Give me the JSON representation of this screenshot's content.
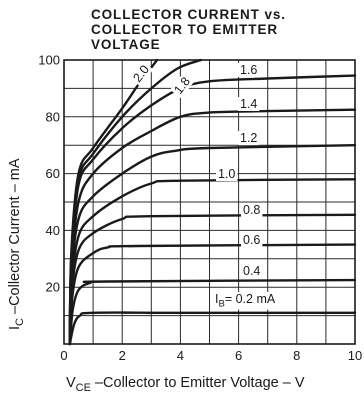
{
  "chart_data": {
    "type": "line",
    "title_lines": [
      "COLLECTOR CURRENT vs.",
      "COLLECTOR TO EMITTER",
      "VOLTAGE"
    ],
    "xlabel": {
      "prefix": "V",
      "sub": "CE",
      "text": " –Collector to Emitter Voltage – V"
    },
    "ylabel": {
      "prefix": "I",
      "sub": "C",
      "text": " –Collector Current – mA"
    },
    "xlim": [
      0,
      10
    ],
    "ylim": [
      0,
      100
    ],
    "x_ticks": [
      0,
      2,
      4,
      6,
      8,
      10
    ],
    "y_ticks": [
      0,
      20,
      40,
      60,
      80,
      100
    ],
    "x_tick_labels": [
      "0",
      "2",
      "4",
      "6",
      "8",
      "10"
    ],
    "y_tick_labels": [
      "",
      "20",
      "40",
      "60",
      "80",
      "100"
    ],
    "grid": true,
    "series": [
      {
        "name": "IB=0.2 mA",
        "label": "I",
        "label_sub": "B",
        "label_rest": "= 0.2  mA",
        "points": [
          [
            0.2,
            0
          ],
          [
            0.35,
            7
          ],
          [
            0.55,
            10
          ],
          [
            1,
            11
          ],
          [
            4,
            11
          ],
          [
            10,
            11
          ]
        ]
      },
      {
        "name": "0.4",
        "label": "0.4",
        "points": [
          [
            0.2,
            0
          ],
          [
            0.3,
            12
          ],
          [
            0.5,
            19
          ],
          [
            0.9,
            21.5
          ],
          [
            1.5,
            22
          ],
          [
            10,
            22.5
          ]
        ]
      },
      {
        "name": "0.6",
        "label": "0.6",
        "points": [
          [
            0.2,
            0
          ],
          [
            0.28,
            16
          ],
          [
            0.5,
            27
          ],
          [
            1,
            32
          ],
          [
            1.5,
            34
          ],
          [
            2.5,
            34.5
          ],
          [
            10,
            35
          ]
        ]
      },
      {
        "name": "0.8",
        "label": "0.8",
        "points": [
          [
            0.2,
            0
          ],
          [
            0.27,
            19
          ],
          [
            0.5,
            33
          ],
          [
            1,
            39
          ],
          [
            2,
            44
          ],
          [
            3,
            45
          ],
          [
            10,
            45.5
          ]
        ]
      },
      {
        "name": "1.0",
        "label": "1.0",
        "points": [
          [
            0.2,
            0
          ],
          [
            0.26,
            21
          ],
          [
            0.5,
            38
          ],
          [
            1,
            45
          ],
          [
            2,
            52
          ],
          [
            3,
            56.5
          ],
          [
            4,
            57.5
          ],
          [
            10,
            58
          ]
        ]
      },
      {
        "name": "1.2",
        "label": "1.2",
        "points": [
          [
            0.2,
            0
          ],
          [
            0.25,
            24
          ],
          [
            0.5,
            44
          ],
          [
            1,
            52
          ],
          [
            2,
            60
          ],
          [
            3,
            66
          ],
          [
            3.8,
            68
          ],
          [
            5,
            69
          ],
          [
            10,
            70
          ]
        ]
      },
      {
        "name": "1.4",
        "label": "1.4",
        "points": [
          [
            0.2,
            0
          ],
          [
            0.25,
            26
          ],
          [
            0.5,
            50
          ],
          [
            1,
            60
          ],
          [
            2,
            69
          ],
          [
            3,
            75
          ],
          [
            4,
            80
          ],
          [
            5,
            81.5
          ],
          [
            7,
            82
          ],
          [
            10,
            82.5
          ]
        ]
      },
      {
        "name": "1.6",
        "label": "1.6",
        "points": [
          [
            0.2,
            0
          ],
          [
            0.25,
            28
          ],
          [
            0.5,
            56
          ],
          [
            1,
            65
          ],
          [
            2,
            76
          ],
          [
            3,
            84
          ],
          [
            4,
            90
          ],
          [
            5,
            92.5
          ],
          [
            7,
            93.5
          ],
          [
            10,
            94.5
          ]
        ]
      },
      {
        "name": "1.8",
        "label": "1.8",
        "points": [
          [
            0.2,
            0
          ],
          [
            0.25,
            30
          ],
          [
            0.5,
            58
          ],
          [
            1,
            67
          ],
          [
            2,
            80
          ],
          [
            3,
            90
          ],
          [
            3.9,
            97
          ],
          [
            4.7,
            100
          ]
        ]
      },
      {
        "name": "2.0",
        "label": "2.0",
        "points": [
          [
            0.2,
            0
          ],
          [
            0.25,
            32
          ],
          [
            0.5,
            60
          ],
          [
            1,
            69
          ],
          [
            2,
            83
          ],
          [
            2.6,
            92
          ],
          [
            3.2,
            100
          ]
        ]
      }
    ]
  }
}
